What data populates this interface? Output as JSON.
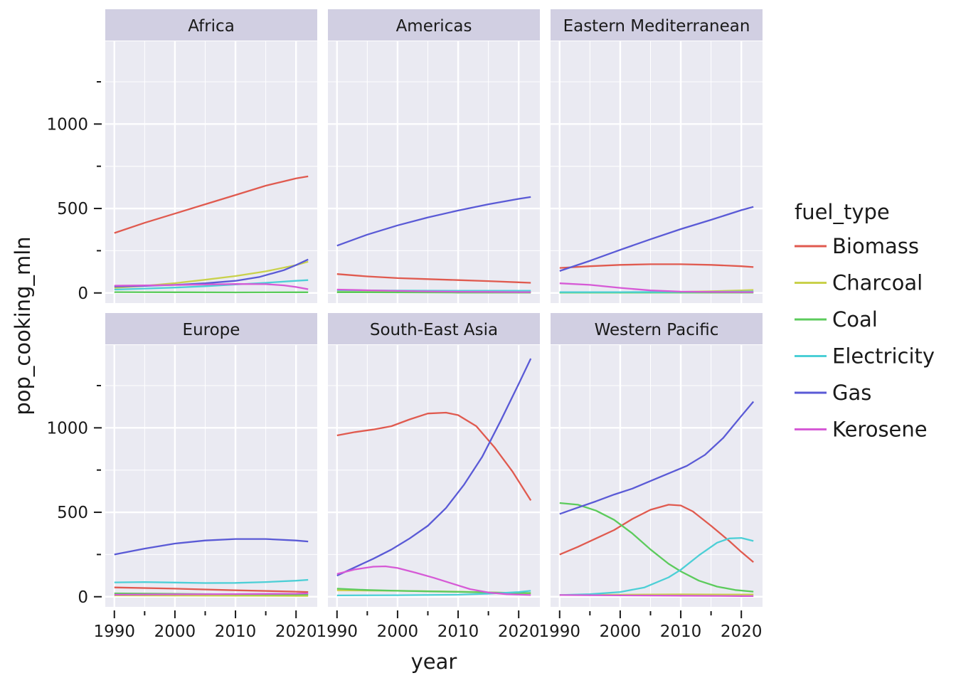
{
  "chart_data": {
    "type": "line",
    "xlabel": "year",
    "ylabel": "pop_cooking_mln",
    "xlim": [
      1990,
      2022
    ],
    "ylim": [
      0,
      1400
    ],
    "x_ticks": [
      1990,
      2000,
      2010,
      2020
    ],
    "y_ticks": [
      0,
      500,
      1000
    ],
    "grid": true,
    "legend": {
      "title": "fuel_type",
      "placement": "right",
      "entries": [
        "Biomass",
        "Charcoal",
        "Coal",
        "Electricity",
        "Gas",
        "Kerosene"
      ]
    },
    "colors": {
      "Biomass": "#E05A4F",
      "Charcoal": "#C9D14B",
      "Coal": "#5CCB5C",
      "Electricity": "#4CCFD6",
      "Gas": "#5A5AD6",
      "Kerosene": "#D65AD6"
    },
    "facet_order": [
      "Africa",
      "Americas",
      "Eastern Mediterranean",
      "Europe",
      "South-East Asia",
      "Western Pacific"
    ],
    "facets": [
      {
        "name": "Africa",
        "series": [
          {
            "name": "Biomass",
            "x": [
              1990,
              1995,
              2000,
              2005,
              2010,
              2015,
              2020,
              2022
            ],
            "y": [
              355,
              415,
              470,
              525,
              580,
              635,
              678,
              690
            ]
          },
          {
            "name": "Charcoal",
            "x": [
              1990,
              1995,
              2000,
              2005,
              2010,
              2015,
              2020,
              2022
            ],
            "y": [
              30,
              42,
              58,
              78,
              100,
              128,
              165,
              185
            ]
          },
          {
            "name": "Coal",
            "x": [
              1990,
              2000,
              2010,
              2020,
              2022
            ],
            "y": [
              5,
              4,
              3,
              4,
              4
            ]
          },
          {
            "name": "Electricity",
            "x": [
              1990,
              1995,
              2000,
              2005,
              2010,
              2015,
              2020,
              2022
            ],
            "y": [
              20,
              26,
              32,
              40,
              50,
              60,
              72,
              76
            ]
          },
          {
            "name": "Gas",
            "x": [
              1990,
              1995,
              2000,
              2005,
              2010,
              2014,
              2018,
              2020,
              2022
            ],
            "y": [
              38,
              42,
              48,
              57,
              72,
              95,
              135,
              165,
              198
            ]
          },
          {
            "name": "Kerosene",
            "x": [
              1990,
              1995,
              2000,
              2005,
              2010,
              2015,
              2018,
              2020,
              2022
            ],
            "y": [
              43,
              45,
              47,
              50,
              53,
              52,
              45,
              35,
              22
            ]
          }
        ]
      },
      {
        "name": "Americas",
        "series": [
          {
            "name": "Biomass",
            "x": [
              1990,
              1995,
              2000,
              2005,
              2010,
              2015,
              2020,
              2022
            ],
            "y": [
              112,
              98,
              88,
              82,
              76,
              70,
              63,
              60
            ]
          },
          {
            "name": "Charcoal",
            "x": [
              1990,
              2000,
              2010,
              2020,
              2022
            ],
            "y": [
              8,
              7,
              6,
              6,
              6
            ]
          },
          {
            "name": "Coal",
            "x": [
              1990,
              2000,
              2010,
              2020,
              2022
            ],
            "y": [
              4,
              3,
              2,
              2,
              2
            ]
          },
          {
            "name": "Electricity",
            "x": [
              1990,
              2000,
              2010,
              2020,
              2022
            ],
            "y": [
              16,
              14,
              13,
              13,
              13
            ]
          },
          {
            "name": "Gas",
            "x": [
              1990,
              1995,
              2000,
              2005,
              2010,
              2015,
              2020,
              2022
            ],
            "y": [
              280,
              345,
              400,
              447,
              488,
              525,
              557,
              568
            ]
          },
          {
            "name": "Kerosene",
            "x": [
              1990,
              1995,
              2000,
              2005,
              2010,
              2015,
              2020,
              2022
            ],
            "y": [
              20,
              16,
              12,
              9,
              7,
              6,
              5,
              5
            ]
          }
        ]
      },
      {
        "name": "Eastern Mediterranean",
        "series": [
          {
            "name": "Biomass",
            "x": [
              1990,
              1995,
              2000,
              2005,
              2010,
              2015,
              2020,
              2022
            ],
            "y": [
              148,
              158,
              166,
              170,
              170,
              166,
              158,
              153
            ]
          },
          {
            "name": "Charcoal",
            "x": [
              1990,
              2000,
              2010,
              2015,
              2020,
              2022
            ],
            "y": [
              3,
              3,
              6,
              10,
              15,
              18
            ]
          },
          {
            "name": "Coal",
            "x": [
              1990,
              2000,
              2010,
              2020,
              2022
            ],
            "y": [
              2,
              2,
              2,
              2,
              2
            ]
          },
          {
            "name": "Electricity",
            "x": [
              1990,
              2000,
              2010,
              2020,
              2022
            ],
            "y": [
              5,
              5,
              6,
              8,
              9
            ]
          },
          {
            "name": "Gas",
            "x": [
              1990,
              1995,
              2000,
              2005,
              2010,
              2015,
              2020,
              2022
            ],
            "y": [
              130,
              190,
              255,
              318,
              378,
              433,
              490,
              510
            ]
          },
          {
            "name": "Kerosene",
            "x": [
              1990,
              1995,
              2000,
              2005,
              2010,
              2015,
              2020,
              2022
            ],
            "y": [
              57,
              48,
              30,
              15,
              8,
              6,
              5,
              5
            ]
          }
        ]
      },
      {
        "name": "Europe",
        "series": [
          {
            "name": "Biomass",
            "x": [
              1990,
              2000,
              2010,
              2020,
              2022
            ],
            "y": [
              55,
              48,
              38,
              30,
              28
            ]
          },
          {
            "name": "Charcoal",
            "x": [
              1990,
              2000,
              2010,
              2020,
              2022
            ],
            "y": [
              8,
              7,
              6,
              5,
              5
            ]
          },
          {
            "name": "Coal",
            "x": [
              1990,
              2000,
              2010,
              2020,
              2022
            ],
            "y": [
              20,
              17,
              14,
              13,
              13
            ]
          },
          {
            "name": "Electricity",
            "x": [
              1990,
              1995,
              2000,
              2005,
              2010,
              2015,
              2020,
              2022
            ],
            "y": [
              85,
              87,
              84,
              81,
              82,
              87,
              95,
              100
            ]
          },
          {
            "name": "Gas",
            "x": [
              1990,
              1995,
              2000,
              2005,
              2010,
              2015,
              2020,
              2022
            ],
            "y": [
              250,
              285,
              315,
              333,
              342,
              342,
              333,
              327
            ]
          },
          {
            "name": "Kerosene",
            "x": [
              1990,
              2000,
              2010,
              2020,
              2022
            ],
            "y": [
              12,
              14,
              16,
              18,
              20
            ]
          }
        ]
      },
      {
        "name": "South-East Asia",
        "series": [
          {
            "name": "Biomass",
            "x": [
              1990,
              1993,
              1996,
              1999,
              2002,
              2005,
              2008,
              2010,
              2013,
              2016,
              2019,
              2022
            ],
            "y": [
              955,
              975,
              990,
              1010,
              1050,
              1085,
              1090,
              1075,
              1010,
              885,
              740,
              570
            ]
          },
          {
            "name": "Charcoal",
            "x": [
              1990,
              2000,
              2010,
              2020,
              2022
            ],
            "y": [
              38,
              35,
              30,
              22,
              20
            ]
          },
          {
            "name": "Coal",
            "x": [
              1990,
              1995,
              2000,
              2005,
              2010,
              2015,
              2020,
              2022
            ],
            "y": [
              48,
              40,
              35,
              32,
              29,
              25,
              22,
              22
            ]
          },
          {
            "name": "Electricity",
            "x": [
              1990,
              2000,
              2010,
              2015,
              2020,
              2022
            ],
            "y": [
              8,
              9,
              12,
              18,
              28,
              35
            ]
          },
          {
            "name": "Gas",
            "x": [
              1990,
              1993,
              1996,
              1999,
              2002,
              2005,
              2008,
              2011,
              2014,
              2017,
              2020,
              2022
            ],
            "y": [
              125,
              175,
              225,
              280,
              345,
              420,
              525,
              665,
              830,
              1040,
              1260,
              1410
            ]
          },
          {
            "name": "Kerosene",
            "x": [
              1990,
              1993,
              1996,
              1998,
              2000,
              2003,
              2006,
              2009,
              2012,
              2015,
              2018,
              2022
            ],
            "y": [
              135,
              162,
              178,
              180,
              170,
              142,
              112,
              78,
              45,
              25,
              15,
              10
            ]
          }
        ]
      },
      {
        "name": "Western Pacific",
        "series": [
          {
            "name": "Biomass",
            "x": [
              1990,
              1993,
              1996,
              1999,
              2002,
              2005,
              2008,
              2010,
              2012,
              2015,
              2018,
              2020,
              2022
            ],
            "y": [
              250,
              295,
              345,
              395,
              460,
              515,
              545,
              540,
              505,
              420,
              330,
              265,
              205
            ]
          },
          {
            "name": "Charcoal",
            "x": [
              1990,
              2000,
              2010,
              2020,
              2022
            ],
            "y": [
              10,
              12,
              14,
              13,
              13
            ]
          },
          {
            "name": "Coal",
            "x": [
              1990,
              1993,
              1996,
              1999,
              2002,
              2005,
              2008,
              2010,
              2013,
              2016,
              2019,
              2022
            ],
            "y": [
              555,
              545,
              510,
              455,
              375,
              280,
              195,
              150,
              95,
              60,
              40,
              30
            ]
          },
          {
            "name": "Electricity",
            "x": [
              1990,
              1995,
              2000,
              2004,
              2008,
              2010,
              2013,
              2016,
              2018,
              2020,
              2022
            ],
            "y": [
              10,
              15,
              28,
              55,
              115,
              160,
              245,
              320,
              345,
              348,
              330
            ]
          },
          {
            "name": "Gas",
            "x": [
              1990,
              1993,
              1996,
              1999,
              2002,
              2005,
              2008,
              2011,
              2014,
              2017,
              2020,
              2022
            ],
            "y": [
              490,
              528,
              565,
              605,
              640,
              685,
              730,
              775,
              840,
              940,
              1070,
              1155
            ]
          },
          {
            "name": "Kerosene",
            "x": [
              1990,
              2000,
              2010,
              2020,
              2022
            ],
            "y": [
              10,
              8,
              6,
              4,
              4
            ]
          }
        ]
      }
    ]
  }
}
